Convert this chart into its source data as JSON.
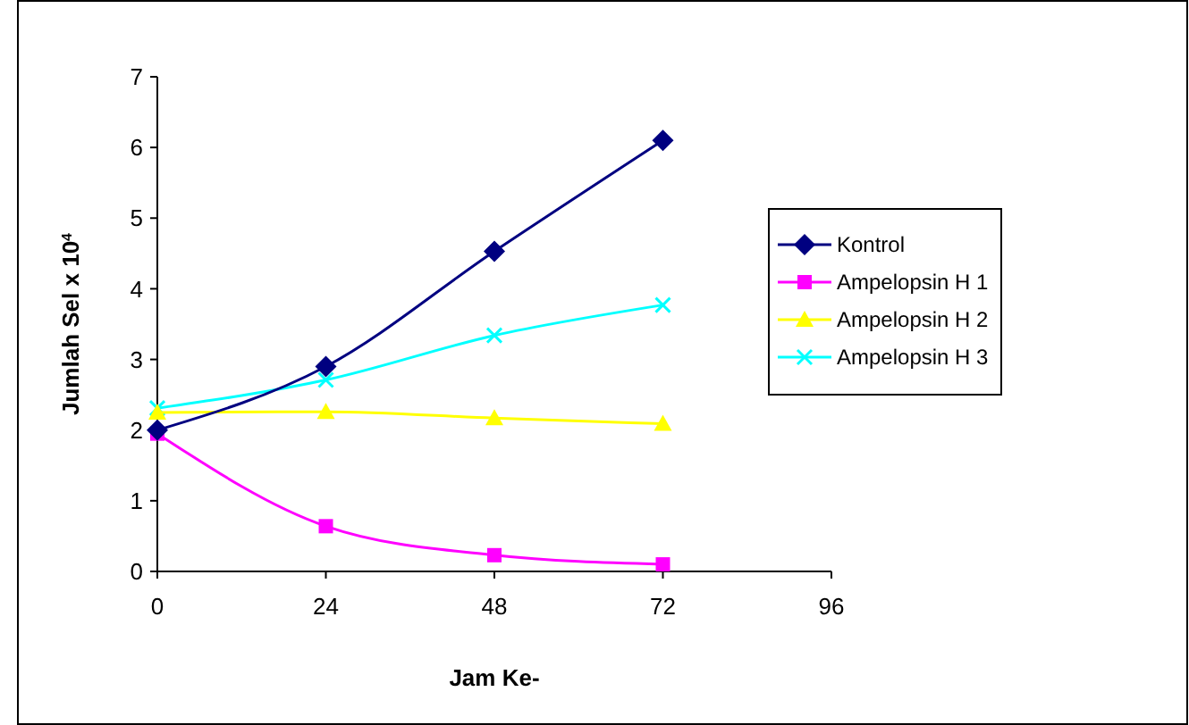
{
  "chart_data": {
    "type": "line",
    "xlabel": "Jam Ke-",
    "ylabel": "Jumlah Sel x 10$^{4}$",
    "x": [
      0,
      24,
      48,
      72
    ],
    "xlim": [
      0,
      96
    ],
    "xticks": [
      0,
      24,
      48,
      72,
      96
    ],
    "ylim": [
      0,
      7
    ],
    "yticks": [
      0,
      1,
      2,
      3,
      4,
      5,
      6,
      7
    ],
    "legend": "right",
    "grid": false,
    "series": [
      {
        "name": "Kontrol",
        "color": "#000080",
        "marker": "diamond",
        "values": [
          2.0,
          2.9,
          4.53,
          6.1
        ]
      },
      {
        "name": "Ampelopsin H 1",
        "color": "#ff00ff",
        "marker": "square",
        "values": [
          1.95,
          0.64,
          0.23,
          0.1
        ]
      },
      {
        "name": "Ampelopsin H 2",
        "color": "#ffff00",
        "marker": "triangle",
        "values": [
          2.25,
          2.26,
          2.17,
          2.09
        ]
      },
      {
        "name": "Ampelopsin H 3",
        "color": "#00ffff",
        "marker": "cross",
        "values": [
          2.31,
          2.71,
          3.34,
          3.77
        ]
      }
    ]
  }
}
